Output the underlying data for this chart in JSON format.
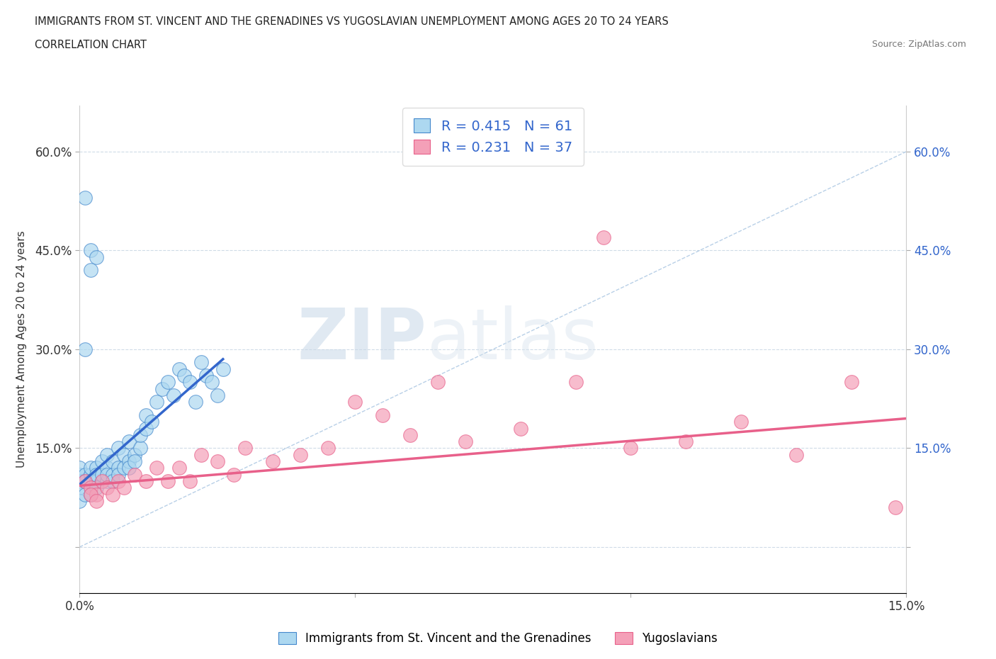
{
  "title_line1": "IMMIGRANTS FROM ST. VINCENT AND THE GRENADINES VS YUGOSLAVIAN UNEMPLOYMENT AMONG AGES 20 TO 24 YEARS",
  "title_line2": "CORRELATION CHART",
  "source_text": "Source: ZipAtlas.com",
  "ylabel": "Unemployment Among Ages 20 to 24 years",
  "legend_label1": "Immigrants from St. Vincent and the Grenadines",
  "legend_label2": "Yugoslavians",
  "R1": 0.415,
  "N1": 61,
  "R2": 0.231,
  "N2": 37,
  "xlim": [
    0.0,
    0.15
  ],
  "ylim": [
    -0.07,
    0.67
  ],
  "xticks": [
    0.0,
    0.05,
    0.1,
    0.15
  ],
  "xtick_labels": [
    "0.0%",
    "",
    "",
    "15.0%"
  ],
  "yticks": [
    0.0,
    0.15,
    0.3,
    0.45,
    0.6
  ],
  "ytick_labels_left": [
    "",
    "15.0%",
    "30.0%",
    "45.0%",
    "60.0%"
  ],
  "ytick_labels_right": [
    "",
    "15.0%",
    "30.0%",
    "45.0%",
    "60.0%"
  ],
  "color_blue": "#ADD8F0",
  "color_pink": "#F4A0B8",
  "color_blue_dark": "#3366CC",
  "color_blue_edge": "#4488CC",
  "color_pink_dark": "#E8608A",
  "color_pink_edge": "#E8608A",
  "watermark_zip": "ZIP",
  "watermark_atlas": "atlas",
  "background_color": "#FFFFFF",
  "blue_x": [
    0.0,
    0.0,
    0.0,
    0.0,
    0.001,
    0.001,
    0.001,
    0.002,
    0.002,
    0.002,
    0.002,
    0.003,
    0.003,
    0.003,
    0.004,
    0.004,
    0.004,
    0.005,
    0.005,
    0.005,
    0.005,
    0.006,
    0.006,
    0.006,
    0.007,
    0.007,
    0.007,
    0.008,
    0.008,
    0.009,
    0.009,
    0.009,
    0.01,
    0.01,
    0.011,
    0.011,
    0.012,
    0.012,
    0.013,
    0.014,
    0.015,
    0.016,
    0.017,
    0.018,
    0.019,
    0.02,
    0.021,
    0.022,
    0.023,
    0.024,
    0.025,
    0.026,
    0.0,
    0.001,
    0.002,
    0.003,
    0.001,
    0.002,
    0.003,
    0.002,
    0.001
  ],
  "blue_y": [
    0.1,
    0.11,
    0.12,
    0.09,
    0.1,
    0.11,
    0.1,
    0.09,
    0.11,
    0.12,
    0.1,
    0.1,
    0.12,
    0.11,
    0.1,
    0.11,
    0.13,
    0.12,
    0.1,
    0.11,
    0.14,
    0.11,
    0.1,
    0.13,
    0.12,
    0.11,
    0.15,
    0.12,
    0.14,
    0.13,
    0.12,
    0.16,
    0.14,
    0.13,
    0.15,
    0.17,
    0.18,
    0.2,
    0.19,
    0.22,
    0.24,
    0.25,
    0.23,
    0.27,
    0.26,
    0.25,
    0.22,
    0.28,
    0.26,
    0.25,
    0.23,
    0.27,
    0.07,
    0.08,
    0.08,
    0.09,
    0.53,
    0.45,
    0.44,
    0.42,
    0.3
  ],
  "pink_x": [
    0.001,
    0.002,
    0.003,
    0.004,
    0.005,
    0.006,
    0.007,
    0.008,
    0.01,
    0.012,
    0.014,
    0.016,
    0.018,
    0.02,
    0.022,
    0.025,
    0.028,
    0.03,
    0.035,
    0.04,
    0.045,
    0.05,
    0.055,
    0.06,
    0.065,
    0.07,
    0.08,
    0.09,
    0.095,
    0.1,
    0.11,
    0.12,
    0.13,
    0.14,
    0.148,
    0.002,
    0.003
  ],
  "pink_y": [
    0.1,
    0.09,
    0.08,
    0.1,
    0.09,
    0.08,
    0.1,
    0.09,
    0.11,
    0.1,
    0.12,
    0.1,
    0.12,
    0.1,
    0.14,
    0.13,
    0.11,
    0.15,
    0.13,
    0.14,
    0.15,
    0.22,
    0.2,
    0.17,
    0.25,
    0.16,
    0.18,
    0.25,
    0.47,
    0.15,
    0.16,
    0.19,
    0.14,
    0.25,
    0.06,
    0.08,
    0.07
  ],
  "blue_line_x": [
    0.0,
    0.026
  ],
  "blue_line_y": [
    0.095,
    0.285
  ],
  "pink_line_x": [
    0.0,
    0.15
  ],
  "pink_line_y": [
    0.093,
    0.195
  ],
  "diag_line_x": [
    0.0,
    0.15
  ],
  "diag_line_y": [
    0.0,
    0.6
  ]
}
